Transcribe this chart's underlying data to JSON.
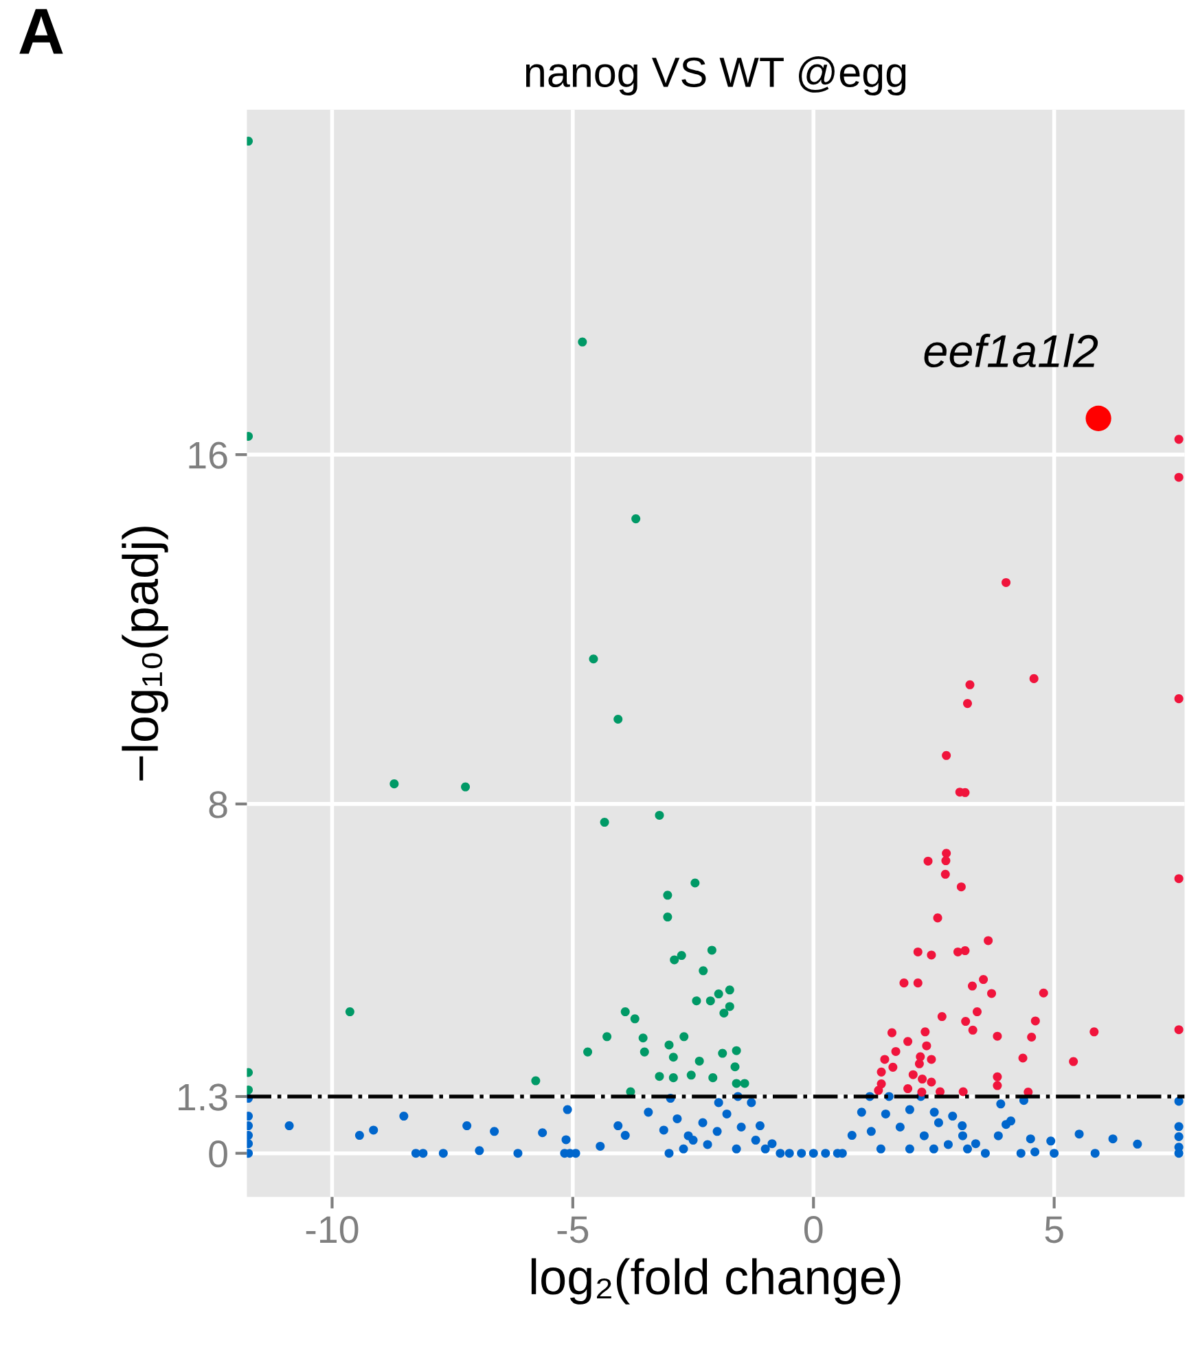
{
  "chart_data": {
    "type": "scatter",
    "title": "nanog VS WT @egg",
    "xlabel": "log₂(fold change)",
    "ylabel": "−log₁₀(padj)",
    "annotations": [
      "A",
      {
        "text": "eef1a1l2",
        "x": 5.92,
        "y": 16.83
      }
    ],
    "xlim": [
      -11.77,
      7.71
    ],
    "ylim": [
      -1.0,
      23.9
    ],
    "xticks": [
      -10,
      -5,
      0,
      5
    ],
    "yticks": [
      0,
      1.3,
      8,
      16
    ],
    "grid": true,
    "marker": "circle",
    "ref_lines": [
      {
        "axis": "y",
        "value": 1.3,
        "color": "#000000",
        "line_style": "dashdot"
      }
    ],
    "series": [
      {
        "color": "#0066cc",
        "x": [
          -11.74,
          -11.74,
          -11.74,
          -11.74,
          -11.74,
          -11.74,
          -10.89,
          -9.43,
          -9.14,
          -8.51,
          -8.26,
          -8.11,
          -7.69,
          -7.2,
          -6.94,
          -6.63,
          -6.14,
          -5.63,
          -5.17,
          -4.94,
          -5.11,
          -5.14,
          -5.06,
          -2.97,
          -4.06,
          -3.43,
          -2.83,
          -3.11,
          -3.91,
          -4.43,
          -3.0,
          -2.6,
          -2.3,
          -1.97,
          -1.57,
          -1.29,
          -1.11,
          -0.86,
          -0.69,
          -2.5,
          -2.0,
          -1.8,
          -1.5,
          -1.2,
          -2.2,
          -1.6,
          -1.0,
          -2.7,
          -0.5,
          -0.25,
          0.0,
          0.25,
          0.5,
          0.6,
          0.8,
          1.0,
          1.17,
          1.57,
          2.23,
          2.51,
          2.89,
          3.09,
          3.37,
          3.57,
          1.2,
          1.5,
          1.8,
          2.0,
          2.3,
          2.6,
          2.8,
          3.1,
          1.4,
          2.0,
          2.5,
          3.2,
          3.89,
          4.37,
          4.0,
          4.1,
          3.84,
          4.51,
          4.93,
          5.52,
          6.22,
          6.73,
          5.85,
          5.0,
          4.31,
          4.6,
          7.59,
          7.59,
          7.59,
          7.59,
          7.59
        ],
        "values": [
          0,
          0.22,
          0.41,
          0.63,
          0.85,
          1.26,
          0.63,
          0.41,
          0.53,
          0.85,
          0,
          0,
          0,
          0.63,
          0.06,
          0.5,
          0,
          0.47,
          0,
          0,
          1.0,
          0.31,
          0,
          1.26,
          0.63,
          0.94,
          0.79,
          0.53,
          0.41,
          0.16,
          0,
          0.4,
          0.7,
          1.16,
          1.3,
          1.16,
          0.63,
          0.22,
          0,
          0.3,
          0.5,
          0.9,
          0.6,
          0.3,
          0.2,
          0.1,
          0.1,
          0.1,
          0,
          0,
          0,
          0,
          0,
          0,
          0.41,
          0.94,
          1.3,
          1.3,
          1.3,
          0.94,
          0.85,
          0.63,
          0.22,
          0,
          0.5,
          0.9,
          0.6,
          1.0,
          0.4,
          0.7,
          0.2,
          0.4,
          0.1,
          0.1,
          0.1,
          0.1,
          1.13,
          1.21,
          0.66,
          0.74,
          0.4,
          0.33,
          0.28,
          0.44,
          0.33,
          0.21,
          0,
          0,
          0,
          0.03,
          1.19,
          0.61,
          0.38,
          0.14,
          0
        ]
      },
      {
        "color": "#009966",
        "x": [
          -11.74,
          -11.74,
          -4.8,
          -3.69,
          -4.57,
          -4.06,
          -8.71,
          -7.23,
          -4.34,
          -3.2,
          -2.46,
          -3.03,
          -3.03,
          -2.89,
          -2.74,
          -2.11,
          -2.29,
          -2.43,
          -1.97,
          -2.14,
          -1.86,
          -1.74,
          -1.74,
          -9.63,
          -3.91,
          -3.71,
          -4.29,
          -3.54,
          -3.51,
          -2.69,
          -3.0,
          -2.91,
          -4.69,
          -5.77,
          -3.2,
          -2.91,
          -2.54,
          -2.37,
          -1.89,
          -1.6,
          -1.63,
          -1.6,
          -1.43,
          -2.09,
          -3.8,
          -11.74,
          -11.74
        ],
        "values": [
          23.18,
          16.42,
          18.58,
          14.53,
          11.32,
          9.94,
          8.46,
          8.39,
          7.58,
          7.74,
          6.19,
          5.91,
          5.41,
          4.43,
          4.53,
          4.65,
          4.18,
          3.49,
          3.65,
          3.49,
          3.21,
          3.74,
          3.36,
          3.24,
          3.24,
          3.08,
          2.67,
          2.64,
          2.32,
          2.67,
          2.48,
          2.2,
          2.32,
          1.66,
          1.76,
          1.73,
          1.79,
          2.11,
          2.29,
          2.35,
          1.98,
          1.6,
          1.6,
          1.73,
          1.41,
          1.85,
          1.45
        ]
      },
      {
        "color": "#f0143c",
        "x": [
          7.59,
          7.59,
          4.0,
          4.58,
          3.25,
          3.2,
          7.59,
          2.76,
          3.04,
          3.15,
          2.76,
          2.75,
          2.38,
          2.74,
          3.07,
          7.59,
          2.58,
          3.63,
          2.17,
          2.45,
          3.0,
          3.15,
          1.88,
          2.17,
          3.53,
          3.3,
          3.7,
          4.78,
          2.67,
          3.4,
          3.16,
          3.31,
          4.61,
          4.53,
          3.82,
          5.83,
          7.59,
          1.63,
          2.32,
          1.96,
          1.71,
          2.35,
          1.48,
          1.65,
          2.22,
          2.2,
          2.45,
          4.35,
          5.4,
          1.41,
          2.07,
          2.26,
          2.45,
          3.82,
          3.82,
          1.41,
          1.96,
          2.63,
          3.11,
          4.46,
          1.35,
          2.25
        ],
        "values": [
          16.35,
          15.48,
          13.07,
          10.87,
          10.73,
          10.3,
          10.41,
          9.11,
          8.27,
          8.26,
          6.87,
          6.7,
          6.69,
          6.39,
          6.1,
          6.29,
          5.39,
          4.87,
          4.61,
          4.54,
          4.61,
          4.64,
          3.9,
          3.9,
          3.98,
          3.83,
          3.66,
          3.67,
          3.13,
          3.24,
          3.02,
          2.82,
          3.03,
          2.66,
          2.68,
          2.78,
          2.83,
          2.76,
          2.78,
          2.56,
          2.33,
          2.46,
          2.15,
          1.97,
          2.21,
          2.05,
          2.15,
          2.18,
          2.1,
          1.86,
          1.8,
          1.7,
          1.63,
          1.75,
          1.55,
          1.59,
          1.48,
          1.41,
          1.41,
          1.4,
          1.44,
          1.4
        ]
      },
      {
        "color": "#ff0000",
        "x": [
          5.92
        ],
        "values": [
          16.83
        ]
      }
    ]
  }
}
